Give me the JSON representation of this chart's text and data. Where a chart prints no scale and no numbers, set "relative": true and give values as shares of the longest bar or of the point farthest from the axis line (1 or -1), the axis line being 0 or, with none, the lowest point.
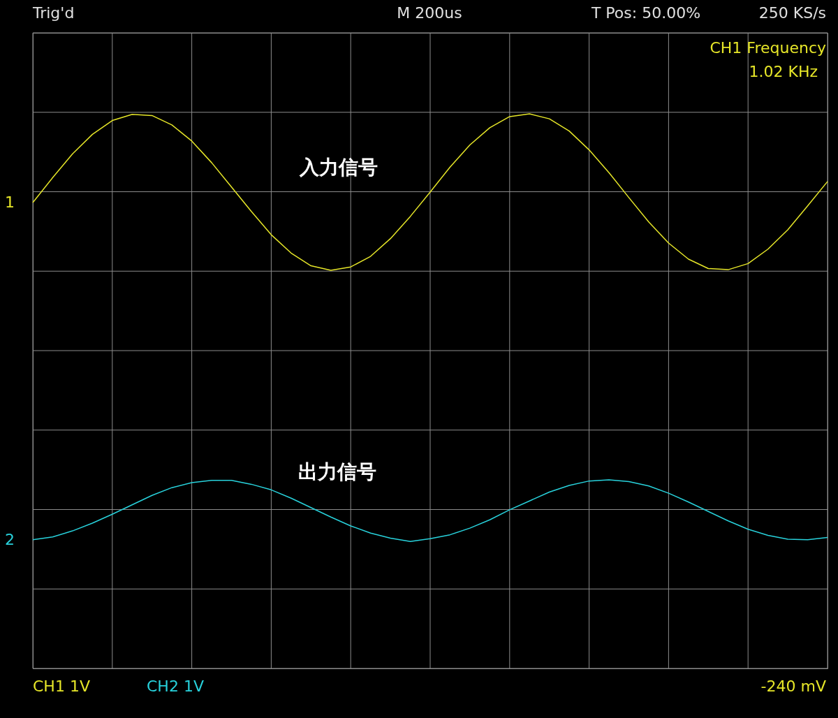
{
  "chart_data": {
    "type": "line",
    "relative": true,
    "grid": true,
    "categories": [
      null,
      null,
      null,
      null,
      null,
      null,
      null,
      null,
      null,
      null,
      null,
      null,
      null,
      null,
      null,
      null,
      null,
      null,
      null,
      null,
      null,
      null,
      null,
      null,
      null,
      null,
      null,
      null,
      null,
      null,
      null,
      null,
      null,
      null,
      null,
      null,
      null,
      null,
      null,
      null,
      null
    ],
    "series": [
      {
        "name": "1",
        "color": "#e6e628",
        "values": [
          0.84,
          0.885,
          0.928,
          0.963,
          0.988,
          0.999,
          0.997,
          0.98,
          0.951,
          0.912,
          0.868,
          0.824,
          0.782,
          0.749,
          0.726,
          0.718,
          0.724,
          0.743,
          0.775,
          0.815,
          0.859,
          0.904,
          0.944,
          0.975,
          0.995,
          1.0,
          0.991,
          0.969,
          0.935,
          0.894,
          0.849,
          0.805,
          0.767,
          0.738,
          0.721,
          0.719,
          0.73,
          0.756,
          0.791,
          0.834,
          0.878
        ]
      },
      {
        "name": "2",
        "color": "#28d2dc",
        "values": [
          0.232,
          0.237,
          0.248,
          0.262,
          0.278,
          0.295,
          0.312,
          0.326,
          0.335,
          0.339,
          0.339,
          0.332,
          0.322,
          0.307,
          0.29,
          0.273,
          0.257,
          0.244,
          0.235,
          0.229,
          0.234,
          0.241,
          0.253,
          0.268,
          0.286,
          0.302,
          0.318,
          0.33,
          0.338,
          0.34,
          0.337,
          0.329,
          0.316,
          0.3,
          0.283,
          0.266,
          0.251,
          0.24,
          0.233,
          0.232,
          0.236
        ]
      }
    ],
    "annotations": [
      "Trig'd",
      "M 200us",
      "T Pos: 50.00%",
      "250 KS/s",
      "CH1 Frequency",
      "1.02 KHz",
      "入力信号",
      "出力信号",
      "CH1  1V",
      "CH2  1V",
      "-240 mV"
    ]
  }
}
